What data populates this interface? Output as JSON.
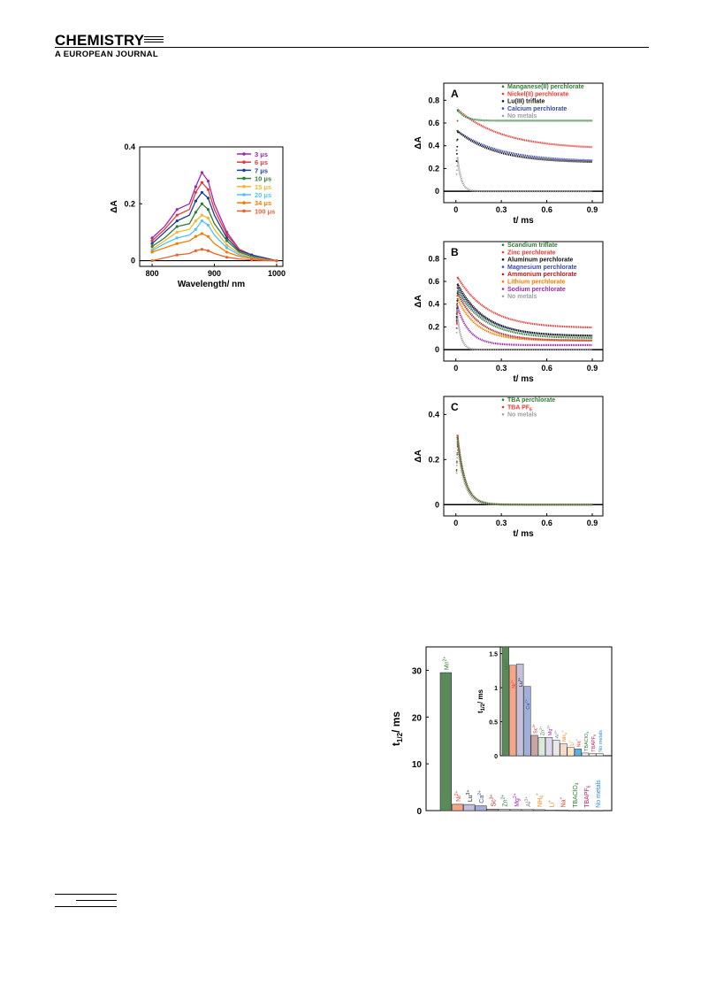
{
  "header": {
    "journal_top": "CHEMISTRY",
    "journal_bottom": "A EUROPEAN JOURNAL"
  },
  "colors": {
    "green": "#2e7d32",
    "red": "#e53935",
    "black": "#111111",
    "blue": "#3949ab",
    "grey": "#a0a0a0",
    "purple": "#9c27b0",
    "orange": "#f57c00",
    "yellow": "#f2b632",
    "cyan": "#4fc3f7",
    "magenta": "#c2185b",
    "darkred": "#b71c1c"
  },
  "chart_data": [
    {
      "id": "spectra",
      "type": "line",
      "xlabel": "Wavelength/ nm",
      "ylabel": "ΔA",
      "xlim": [
        780,
        1010
      ],
      "ylim": [
        -0.02,
        0.4
      ],
      "xticks": [
        "800",
        "900",
        "1000"
      ],
      "yticks": [
        "0",
        "0.2",
        "0.4"
      ],
      "x": [
        800,
        820,
        840,
        860,
        870,
        880,
        890,
        900,
        920,
        940,
        960,
        980,
        1000
      ],
      "series": [
        {
          "name": "3 μs",
          "color": "#9c27b0",
          "values": [
            0.08,
            0.12,
            0.18,
            0.2,
            0.26,
            0.31,
            0.28,
            0.2,
            0.1,
            0.04,
            0.02,
            0.01,
            0.0
          ]
        },
        {
          "name": "6 μs",
          "color": "#e53935",
          "values": [
            0.07,
            0.11,
            0.16,
            0.18,
            0.24,
            0.275,
            0.25,
            0.18,
            0.09,
            0.04,
            0.02,
            0.01,
            0.0
          ]
        },
        {
          "name": "7 μs",
          "color": "#1a3f9e",
          "values": [
            0.06,
            0.1,
            0.14,
            0.16,
            0.21,
            0.24,
            0.22,
            0.16,
            0.08,
            0.035,
            0.02,
            0.01,
            0.0
          ]
        },
        {
          "name": "10 μs",
          "color": "#2e7d32",
          "values": [
            0.05,
            0.08,
            0.12,
            0.13,
            0.17,
            0.2,
            0.18,
            0.13,
            0.07,
            0.03,
            0.015,
            0.005,
            0.0
          ]
        },
        {
          "name": "15 μs",
          "color": "#f2b632",
          "values": [
            0.04,
            0.07,
            0.1,
            0.11,
            0.14,
            0.16,
            0.15,
            0.11,
            0.055,
            0.025,
            0.01,
            0.005,
            0.0
          ]
        },
        {
          "name": "20 μs",
          "color": "#4fc3f7",
          "values": [
            0.035,
            0.06,
            0.08,
            0.09,
            0.11,
            0.14,
            0.125,
            0.09,
            0.045,
            0.02,
            0.01,
            0.005,
            0.0
          ]
        },
        {
          "name": "34 μs",
          "color": "#f57c00",
          "values": [
            0.03,
            0.045,
            0.06,
            0.07,
            0.085,
            0.095,
            0.085,
            0.06,
            0.03,
            0.015,
            0.008,
            0.004,
            0.0
          ]
        },
        {
          "name": "100 μs",
          "color": "#e8622c",
          "values": [
            0.0,
            0.01,
            0.02,
            0.025,
            0.035,
            0.04,
            0.035,
            0.025,
            0.012,
            0.006,
            0.003,
            0.001,
            0.0
          ]
        }
      ]
    },
    {
      "id": "decayA",
      "type": "scatter",
      "panel_label": "A",
      "xlabel": "t/ ms",
      "ylabel": "ΔA",
      "xlim": [
        -0.08,
        0.97
      ],
      "ylim": [
        -0.1,
        0.95
      ],
      "xticks": [
        "0",
        "0.3",
        "0.6",
        "0.9"
      ],
      "yticks": [
        "0",
        "0.2",
        "0.4",
        "0.6",
        "0.8"
      ],
      "series": [
        {
          "name": "Manganese(II) perchlorate",
          "color": "#2e7d32",
          "peak": 0.72,
          "plateau": 0.62,
          "tau": 0.05
        },
        {
          "name": "Nickel(II) perchlorate",
          "color": "#e53935",
          "peak": 0.72,
          "plateau": 0.37,
          "tau": 0.3
        },
        {
          "name": "Lu(III) triflate",
          "color": "#111111",
          "peak": 0.53,
          "plateau": 0.25,
          "tau": 0.25
        },
        {
          "name": "Calcium perchlorate",
          "color": "#3949ab",
          "peak": 0.53,
          "plateau": 0.26,
          "tau": 0.28
        },
        {
          "name": "No metals",
          "color": "#a0a0a0",
          "peak": 0.3,
          "plateau": 0.0,
          "tau": 0.025
        }
      ]
    },
    {
      "id": "decayB",
      "type": "scatter",
      "panel_label": "B",
      "xlabel": "t/ ms",
      "ylabel": "ΔA",
      "xlim": [
        -0.08,
        0.97
      ],
      "ylim": [
        -0.1,
        0.95
      ],
      "xticks": [
        "0",
        "0.3",
        "0.6",
        "0.9"
      ],
      "yticks": [
        "0",
        "0.2",
        "0.4",
        "0.6",
        "0.8"
      ],
      "series": [
        {
          "name": "Scandium triflate",
          "color": "#2e7d32",
          "peak": 0.52,
          "plateau": 0.1,
          "tau": 0.18
        },
        {
          "name": "Zinc perchlorate",
          "color": "#e53935",
          "peak": 0.64,
          "plateau": 0.19,
          "tau": 0.2
        },
        {
          "name": "Aluminum perchlorate",
          "color": "#111111",
          "peak": 0.58,
          "plateau": 0.12,
          "tau": 0.18
        },
        {
          "name": "Magnesium perchlorate",
          "color": "#3949ab",
          "peak": 0.55,
          "plateau": 0.12,
          "tau": 0.18
        },
        {
          "name": "Ammonium perchlorate",
          "color": "#b71c1c",
          "peak": 0.5,
          "plateau": 0.08,
          "tau": 0.15
        },
        {
          "name": "Lithium perchlorate",
          "color": "#f57c00",
          "peak": 0.45,
          "plateau": 0.08,
          "tau": 0.13
        },
        {
          "name": "Sodium perchlorate",
          "color": "#9c27b0",
          "peak": 0.38,
          "plateau": 0.04,
          "tau": 0.08
        },
        {
          "name": "No metals",
          "color": "#a0a0a0",
          "peak": 0.3,
          "plateau": 0.0,
          "tau": 0.025
        }
      ]
    },
    {
      "id": "decayC",
      "type": "scatter",
      "panel_label": "C",
      "xlabel": "t/ ms",
      "ylabel": "ΔA",
      "xlim": [
        -0.08,
        0.97
      ],
      "ylim": [
        -0.05,
        0.48
      ],
      "xticks": [
        "0",
        "0.3",
        "0.6",
        "0.9"
      ],
      "yticks": [
        "0",
        "0.2",
        "0.4"
      ],
      "series": [
        {
          "name": "TBA perchlorate",
          "color": "#2e7d32",
          "peak": 0.3,
          "plateau": 0.0,
          "tau": 0.05
        },
        {
          "name": "TBA PF",
          "sub": "6",
          "color": "#e53935",
          "peak": 0.31,
          "plateau": 0.0,
          "tau": 0.05
        },
        {
          "name": "No metals",
          "color": "#a0a0a0",
          "peak": 0.28,
          "plateau": 0.0,
          "tau": 0.045
        }
      ]
    },
    {
      "id": "halflife",
      "type": "bar",
      "ylabel": "t",
      "ylabel_sub": "1/2",
      "ylabel_unit": "/ ms",
      "ylim": [
        0,
        35
      ],
      "yticks": [
        "0",
        "10",
        "20",
        "30"
      ],
      "categories": [
        "Mn",
        "Ni",
        "Lu",
        "Ca",
        "Sc",
        "Zn",
        "Mg",
        "Al",
        "NH",
        "Li",
        "Na",
        "TBAClO",
        "TBAPF",
        "No metals"
      ],
      "sups": [
        "2+",
        "2+",
        "3+",
        "2+",
        "3+",
        "2+",
        "2+",
        "3+",
        "+",
        "+",
        "+",
        "",
        "",
        ""
      ],
      "subs": [
        "",
        "",
        "",
        "",
        "",
        "",
        "",
        "",
        "4",
        "",
        "",
        "4",
        "6",
        ""
      ],
      "values": [
        29.5,
        1.35,
        1.3,
        1.0,
        0.3,
        0.25,
        0.23,
        0.22,
        0.2,
        0.12,
        0.1,
        0.04,
        0.04,
        0.03
      ],
      "bar_colors": [
        "#5a8a5a",
        "#f4a58a",
        "#c4c0dc",
        "#a0aed8",
        "#c8a4a4",
        "#d8ead8",
        "#e0d8f0",
        "#e8e8e8",
        "#f8d8c8",
        "#ffe8c8",
        "#5ab0e0",
        "#f0f0f0",
        "#f0f0f0",
        "#f0f0f0"
      ],
      "label_colors": [
        "#2e7d32",
        "#e53935",
        "#111111",
        "#3949ab",
        "#b71c1c",
        "#2e7d32",
        "#9c27b0",
        "#888888",
        "#f57c00",
        "#f57c00",
        "#e53935",
        "#2e7d32",
        "#c2185b",
        "#1e88e5"
      ]
    },
    {
      "id": "halflife_inset",
      "type": "bar",
      "ylabel": "t",
      "ylabel_sub": "1/2",
      "ylabel_unit": "/ ms",
      "ylim": [
        0,
        1.6
      ],
      "yticks": [
        "0",
        "0.5",
        "1",
        "1.5"
      ],
      "categories": [
        "Mn",
        "Ni",
        "Lu",
        "Ca",
        "Sc",
        "Zn",
        "Mg",
        "Al",
        "NH",
        "Li",
        "Na",
        "TBAClO",
        "TBAPF",
        "No metals"
      ],
      "sups": [
        "2+",
        "2+",
        "3+",
        "2+",
        "3+",
        "2+",
        "2+",
        "3+",
        "+",
        "+",
        "+",
        "",
        "",
        ""
      ],
      "subs": [
        "",
        "",
        "",
        "",
        "",
        "",
        "",
        "",
        "4",
        "",
        "",
        "4",
        "6",
        ""
      ],
      "values": [
        1.6,
        1.33,
        1.35,
        1.02,
        0.3,
        0.27,
        0.27,
        0.23,
        0.18,
        0.12,
        0.1,
        0.04,
        0.03,
        0.03
      ],
      "bar_colors": [
        "#5a8a5a",
        "#f4a58a",
        "#c4c0dc",
        "#a0aed8",
        "#c8a4a4",
        "#d8ead8",
        "#e0d8f0",
        "#e8e8e8",
        "#f8d8c8",
        "#ffe8c8",
        "#5ab0e0",
        "#f0f0f0",
        "#f0f0f0",
        "#f0f0f0"
      ],
      "label_colors": [
        "#2e7d32",
        "#e53935",
        "#111111",
        "#3949ab",
        "#b71c1c",
        "#2e7d32",
        "#9c27b0",
        "#888888",
        "#f57c00",
        "#f57c00",
        "#e53935",
        "#2e7d32",
        "#c2185b",
        "#1e88e5"
      ]
    }
  ]
}
